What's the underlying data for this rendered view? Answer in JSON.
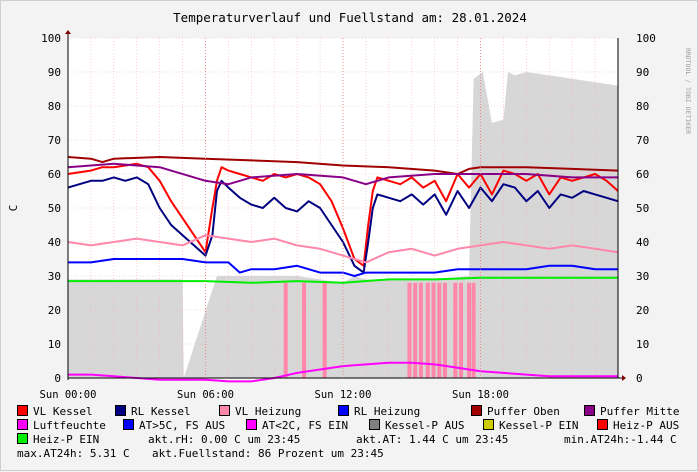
{
  "chart_data": {
    "type": "line",
    "title": "Temperaturverlauf und Fuellstand am: 28.01.2024",
    "ylabel": "C",
    "side_label": "RRDTOOL / TOBI OETIKER",
    "ylim": [
      0,
      100
    ],
    "y_ticks": [
      0,
      10,
      20,
      30,
      40,
      50,
      60,
      70,
      80,
      90,
      100
    ],
    "xlim": [
      0,
      24
    ],
    "x_ticks": [
      {
        "x": 0,
        "label": "Sun 00:00"
      },
      {
        "x": 6,
        "label": "Sun 06:00"
      },
      {
        "x": 12,
        "label": "Sun 12:00"
      },
      {
        "x": 18,
        "label": "Sun 18:00"
      }
    ],
    "grid": true,
    "legend_placement": "bottom",
    "series": [
      {
        "name": "VL Kessel",
        "color": "#ff0000",
        "kind": "line",
        "x": [
          0,
          0.5,
          1,
          1.5,
          2,
          2.5,
          3,
          3.5,
          4,
          4.5,
          5,
          5.5,
          6,
          6.3,
          6.5,
          6.7,
          7,
          7.5,
          8,
          8.5,
          9,
          9.5,
          10,
          10.5,
          11,
          11.5,
          12,
          12.5,
          12.9,
          13.1,
          13.3,
          13.5,
          14,
          14.5,
          15,
          15.5,
          16,
          16.5,
          17,
          17.5,
          18,
          18.5,
          19,
          19.5,
          20,
          20.5,
          21,
          21.5,
          22,
          22.5,
          23,
          23.5,
          24
        ],
        "y": [
          60,
          60.5,
          61,
          62,
          62,
          62.5,
          63,
          62,
          58,
          52,
          47,
          42,
          37,
          50,
          58,
          62,
          61,
          60,
          59,
          58,
          60,
          59,
          60,
          59,
          57,
          52,
          44,
          35,
          33,
          45,
          55,
          59,
          58,
          57,
          59,
          56,
          58,
          52,
          60,
          56,
          60,
          54,
          61,
          60,
          58,
          60,
          54,
          59,
          58,
          59,
          60,
          58,
          55
        ]
      },
      {
        "name": "RL Kessel",
        "color": "#000080",
        "kind": "line",
        "x": [
          0,
          0.5,
          1,
          1.5,
          2,
          2.5,
          3,
          3.5,
          4,
          4.5,
          5,
          5.5,
          6,
          6.3,
          6.5,
          6.7,
          7,
          7.5,
          8,
          8.5,
          9,
          9.5,
          10,
          10.5,
          11,
          11.5,
          12,
          12.5,
          12.9,
          13.1,
          13.3,
          13.5,
          14,
          14.5,
          15,
          15.5,
          16,
          16.5,
          17,
          17.5,
          18,
          18.5,
          19,
          19.5,
          20,
          20.5,
          21,
          21.5,
          22,
          22.5,
          23,
          23.5,
          24
        ],
        "y": [
          56,
          57,
          58,
          58,
          59,
          58,
          59,
          57,
          50,
          45,
          42,
          39,
          36,
          42,
          55,
          58,
          56,
          53,
          51,
          50,
          53,
          50,
          49,
          52,
          50,
          45,
          40,
          33,
          31,
          40,
          50,
          54,
          53,
          52,
          54,
          51,
          54,
          48,
          55,
          50,
          56,
          52,
          57,
          56,
          52,
          55,
          50,
          54,
          53,
          55,
          54,
          53,
          52
        ]
      },
      {
        "name": "VL Heizung",
        "color": "#ff88aa",
        "kind": "line",
        "x": [
          0,
          1,
          2,
          3,
          4,
          5,
          6,
          7,
          8,
          9,
          10,
          11,
          12,
          12.5,
          13,
          14,
          15,
          16,
          17,
          18,
          19,
          20,
          21,
          22,
          23,
          24
        ],
        "y": [
          40,
          39,
          40,
          41,
          40,
          39,
          42,
          41,
          40,
          41,
          39,
          38,
          36,
          35,
          34,
          37,
          38,
          36,
          38,
          39,
          40,
          39,
          38,
          39,
          38,
          37
        ]
      },
      {
        "name": "RL Heizung",
        "color": "#0000ff",
        "kind": "line",
        "x": [
          0,
          1,
          2,
          3,
          4,
          5,
          6,
          7,
          7.5,
          8,
          9,
          10,
          11,
          12,
          12.5,
          13,
          14,
          15,
          16,
          17,
          18,
          19,
          20,
          21,
          22,
          23,
          24
        ],
        "y": [
          34,
          34,
          35,
          35,
          35,
          35,
          34,
          34,
          31,
          32,
          32,
          33,
          31,
          31,
          30,
          31,
          31,
          31,
          31,
          32,
          32,
          32,
          32,
          33,
          33,
          32,
          32
        ]
      },
      {
        "name": "Puffer Oben",
        "color": "#a00000",
        "kind": "line",
        "x": [
          0,
          1,
          1.5,
          2,
          4,
          6,
          8,
          10,
          12,
          14,
          16,
          17,
          17.5,
          18,
          20,
          22,
          24
        ],
        "y": [
          65,
          64.5,
          63.5,
          64.5,
          65,
          64.5,
          64,
          63.5,
          62.5,
          62,
          61,
          60,
          61.5,
          62,
          62,
          61.5,
          61
        ]
      },
      {
        "name": "Puffer Mitte",
        "color": "#880088",
        "kind": "line",
        "x": [
          0,
          2,
          4,
          6,
          7,
          8,
          10,
          12,
          13,
          14,
          16,
          18,
          20,
          22,
          24
        ],
        "y": [
          62,
          63,
          62,
          58,
          57,
          59,
          60,
          59,
          57,
          59,
          60,
          60,
          60,
          59,
          59
        ]
      },
      {
        "name": "Luftfeuchte",
        "color": "#ff00ff",
        "kind": "line",
        "x": [
          0,
          1,
          2,
          3,
          4,
          5,
          6,
          7,
          8,
          9,
          10,
          11,
          12,
          13,
          14,
          15,
          16,
          17,
          18,
          19,
          20,
          21,
          22,
          23,
          24
        ],
        "y": [
          1,
          1,
          0.5,
          0,
          -0.5,
          -0.5,
          -0.5,
          -1,
          -1,
          0,
          1.5,
          2.5,
          3.5,
          4,
          4.5,
          4.5,
          4,
          3,
          2,
          1.5,
          1,
          0.5,
          0.5,
          0.5,
          0.5
        ]
      },
      {
        "name": "AT>5C, FS AUS",
        "color": "#0000ff",
        "kind": "line",
        "x": [],
        "y": []
      },
      {
        "name": "AT<2C, FS EIN",
        "color": "#ff00ff",
        "kind": "line",
        "x": [],
        "y": []
      },
      {
        "name": "Kessel-P AUS",
        "color": "#808080",
        "kind": "area",
        "x": [
          0,
          5,
          5.05,
          6.5,
          7.5,
          8.5,
          10,
          12,
          12.5,
          13,
          16,
          17.5,
          17.7,
          17.9,
          18.1,
          18.5,
          19,
          19.2,
          19.5,
          20,
          21,
          22,
          23,
          24
        ],
        "y": [
          29,
          29,
          0,
          30,
          30,
          30,
          30,
          28,
          30,
          29,
          29,
          30,
          88,
          89,
          90,
          75,
          76,
          90,
          89,
          90,
          89,
          88,
          87,
          86
        ]
      },
      {
        "name": "Kessel-P EIN",
        "color": "#cccc00",
        "kind": "area",
        "x": [],
        "y": []
      },
      {
        "name": "Heiz-P AUS",
        "color": "#ff0000",
        "kind": "line",
        "x": [],
        "y": []
      },
      {
        "name": "Heiz-P EIN",
        "color": "#00ee00",
        "kind": "line",
        "x": [
          0,
          2,
          4,
          6,
          8,
          10,
          12,
          14,
          16,
          18,
          20,
          22,
          24
        ],
        "y": [
          28.5,
          28.5,
          28.5,
          28.5,
          28,
          28.5,
          28,
          29,
          29,
          29.5,
          29.5,
          29.5,
          29.5
        ]
      }
    ],
    "pump_bars": {
      "color": "#ff88aa",
      "x": [
        9.5,
        10.3,
        11.2,
        14.9,
        15.15,
        15.4,
        15.7,
        15.95,
        16.2,
        16.45,
        16.9,
        17.15,
        17.5,
        17.7
      ],
      "y": [
        28,
        28,
        28,
        28,
        28,
        28,
        28,
        28,
        28,
        28,
        28,
        28,
        28,
        28
      ]
    }
  },
  "status": {
    "akt_rh": "akt.rH: 0.00 C um 23:45",
    "akt_at": "akt.AT: 1.44 C um 23:45",
    "min_at": "min.AT24h:-1.44 C",
    "max_at": "max.AT24h: 5.31 C",
    "fuellstand": "akt.Fuellstand:   86 Prozent um 23:45"
  }
}
